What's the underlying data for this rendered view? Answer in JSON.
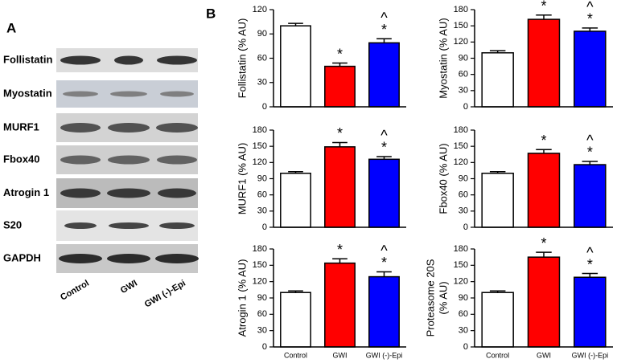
{
  "blot": {
    "label": "A",
    "rows": [
      "Follistatin",
      "Myostatin",
      "MURF1",
      "Fbox40",
      "Atrogin 1",
      "S20",
      "GAPDH"
    ],
    "lanes": [
      "Control",
      "GWI",
      "GWI (-)-Epi"
    ]
  },
  "panel_b": "B",
  "chart_data": [
    {
      "type": "bar",
      "ylabel": [
        "Follistatin (% AU)"
      ],
      "categories": [
        null,
        null,
        null
      ],
      "values": [
        100,
        50,
        79
      ],
      "errors": [
        3,
        4,
        5
      ],
      "colors": [
        "#ffffff",
        "#ff0000",
        "#0000ff"
      ],
      "annotations": [
        [],
        [
          "*"
        ],
        [
          "^",
          "*"
        ]
      ],
      "ylim": [
        0,
        120
      ],
      "yticks": [
        0,
        30,
        60,
        90,
        120
      ]
    },
    {
      "type": "bar",
      "ylabel": [
        "Myostatin (% AU)"
      ],
      "categories": [
        null,
        null,
        null
      ],
      "values": [
        100,
        162,
        140
      ],
      "errors": [
        4,
        8,
        6
      ],
      "colors": [
        "#ffffff",
        "#ff0000",
        "#0000ff"
      ],
      "annotations": [
        [],
        [
          "*"
        ],
        [
          "^",
          "*"
        ]
      ],
      "ylim": [
        0,
        180
      ],
      "yticks": [
        0,
        30,
        60,
        90,
        120,
        150,
        180
      ]
    },
    {
      "type": "bar",
      "ylabel": [
        "MURF1 (% AU)"
      ],
      "categories": [
        null,
        null,
        null
      ],
      "values": [
        100,
        149,
        126
      ],
      "errors": [
        3,
        8,
        5
      ],
      "colors": [
        "#ffffff",
        "#ff0000",
        "#0000ff"
      ],
      "annotations": [
        [],
        [
          "*"
        ],
        [
          "^",
          "*"
        ]
      ],
      "ylim": [
        0,
        180
      ],
      "yticks": [
        0,
        30,
        60,
        90,
        120,
        150,
        180
      ]
    },
    {
      "type": "bar",
      "ylabel": [
        "Fbox40  (% AU)"
      ],
      "categories": [
        null,
        null,
        null
      ],
      "values": [
        100,
        137,
        116
      ],
      "errors": [
        3,
        7,
        6
      ],
      "colors": [
        "#ffffff",
        "#ff0000",
        "#0000ff"
      ],
      "annotations": [
        [],
        [
          "*"
        ],
        [
          "^",
          "*"
        ]
      ],
      "ylim": [
        0,
        180
      ],
      "yticks": [
        0,
        30,
        60,
        90,
        120,
        150,
        180
      ]
    },
    {
      "type": "bar",
      "ylabel": [
        "Atrogin 1 (% AU)"
      ],
      "categories": [
        "Control",
        "GWI",
        "GWI (-)-Epi"
      ],
      "values": [
        100,
        154,
        129
      ],
      "errors": [
        3,
        8,
        9
      ],
      "colors": [
        "#ffffff",
        "#ff0000",
        "#0000ff"
      ],
      "annotations": [
        [],
        [
          "*"
        ],
        [
          "^",
          "*"
        ]
      ],
      "ylim": [
        0,
        180
      ],
      "yticks": [
        0,
        30,
        60,
        90,
        120,
        150,
        180
      ]
    },
    {
      "type": "bar",
      "ylabel": [
        "Proteasome 20S",
        "(% AU)"
      ],
      "categories": [
        "Control",
        "GWI",
        "GWI (-)-Epi"
      ],
      "values": [
        100,
        165,
        128
      ],
      "errors": [
        3,
        9,
        7
      ],
      "colors": [
        "#ffffff",
        "#ff0000",
        "#0000ff"
      ],
      "annotations": [
        [],
        [
          "*"
        ],
        [
          "^",
          "*"
        ]
      ],
      "ylim": [
        0,
        180
      ],
      "yticks": [
        0,
        30,
        60,
        90,
        120,
        150,
        180
      ]
    }
  ]
}
